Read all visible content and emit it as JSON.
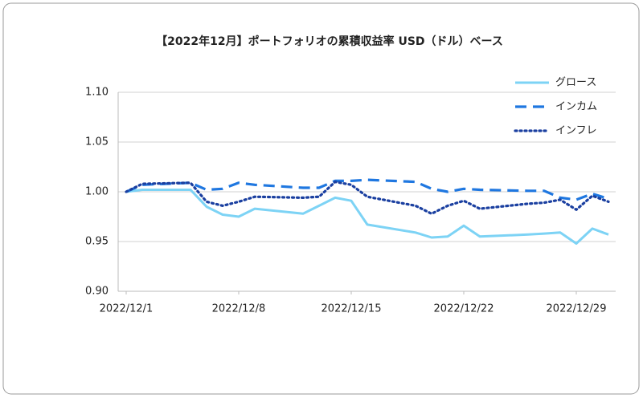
{
  "chart_data": {
    "type": "line",
    "title": "【2022年12月】ポートフォリオの累積収益率 USD（ドル）ベース",
    "x": [
      "2022/12/1",
      "2022/12/2",
      "2022/12/5",
      "2022/12/6",
      "2022/12/7",
      "2022/12/8",
      "2022/12/9",
      "2022/12/12",
      "2022/12/13",
      "2022/12/14",
      "2022/12/15",
      "2022/12/16",
      "2022/12/19",
      "2022/12/20",
      "2022/12/21",
      "2022/12/22",
      "2022/12/23",
      "2022/12/26",
      "2022/12/27",
      "2022/12/28",
      "2022/12/29",
      "2022/12/30",
      "2022/12/31"
    ],
    "series": [
      {
        "name": "グロース",
        "color": "#7dd3f5",
        "dash": "solid",
        "values": [
          1.0,
          1.002,
          1.002,
          0.985,
          0.977,
          0.975,
          0.983,
          0.978,
          0.986,
          0.994,
          0.991,
          0.967,
          0.959,
          0.954,
          0.955,
          0.966,
          0.955,
          0.957,
          0.958,
          0.959,
          0.948,
          0.963,
          0.957
        ]
      },
      {
        "name": "インカム",
        "color": "#1f77e0",
        "dash": "dashed",
        "values": [
          1.0,
          1.007,
          1.009,
          1.002,
          1.003,
          1.009,
          1.007,
          1.004,
          1.004,
          1.011,
          1.011,
          1.012,
          1.01,
          1.003,
          1.0,
          1.003,
          1.002,
          1.001,
          1.001,
          0.994,
          0.992,
          0.998,
          0.993
        ]
      },
      {
        "name": "インフレ",
        "color": "#1a3fa0",
        "dash": "dotted",
        "values": [
          1.0,
          1.008,
          1.009,
          0.99,
          0.986,
          0.99,
          0.995,
          0.994,
          0.995,
          1.01,
          1.007,
          0.995,
          0.986,
          0.978,
          0.986,
          0.991,
          0.983,
          0.988,
          0.989,
          0.992,
          0.982,
          0.996,
          0.99
        ]
      }
    ],
    "xlim": [
      "2022/12/1",
      "2022/12/31"
    ],
    "xticks": [
      "2022/12/1",
      "2022/12/8",
      "2022/12/15",
      "2022/12/22",
      "2022/12/29"
    ],
    "ylim": [
      0.9,
      1.1
    ],
    "yticks": [
      {
        "value": 0.9,
        "label": "0.90"
      },
      0.95,
      {
        "value": 1.0,
        "label": "1.00"
      },
      1.05,
      {
        "value": 1.1,
        "label": "1.10"
      }
    ],
    "grid": true,
    "legend": "top-right"
  }
}
